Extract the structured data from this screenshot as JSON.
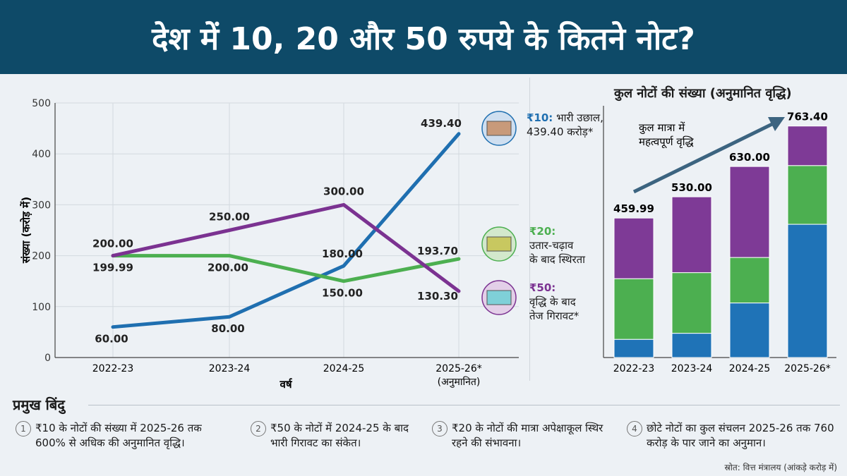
{
  "title": "देश में 10, 20 और 50 रुपये के कितने नोट?",
  "colors": {
    "header": "#0e4a68",
    "rs10": "#1f6fb0",
    "rs20": "#4caf50",
    "rs50": "#7b3291"
  },
  "chart_data": [
    {
      "type": "line",
      "categories": [
        "2022-23",
        "2023-24",
        "2024-25",
        "2025-26*"
      ],
      "category_sub": [
        "",
        "",
        "",
        "(अनुमानित)"
      ],
      "xlabel": "वर्ष",
      "ylabel": "संख्या (करोड़ में)",
      "ylim": [
        0,
        500
      ],
      "yticks": [
        0,
        100,
        200,
        300,
        400,
        500
      ],
      "grid": true,
      "series": [
        {
          "name": "₹10",
          "values": [
            60.0,
            80.0,
            180.0,
            439.4
          ],
          "labels": [
            "60.00",
            "80.00",
            "180.00",
            "439.40"
          ],
          "color": "#1f6fb0"
        },
        {
          "name": "₹20",
          "values": [
            199.99,
            200.0,
            150.0,
            193.7
          ],
          "labels": [
            "199.99",
            "200.00",
            "150.00",
            "193.70"
          ],
          "color": "#4caf50"
        },
        {
          "name": "₹50",
          "values": [
            200.0,
            250.0,
            300.0,
            130.3
          ],
          "labels": [
            "200.00",
            "250.00",
            "300.00",
            "130.30"
          ],
          "color": "#7b3291"
        }
      ],
      "annotations": [
        {
          "head": "₹10:",
          "text1": "भारी उछाल,",
          "text2": "439.40 करोड़*",
          "icon": "ten-rupee-note-icon"
        },
        {
          "head": "₹20:",
          "text1": "उतार-चढ़ाव",
          "text2": "के बाद स्थिरता",
          "icon": "twenty-rupee-note-icon"
        },
        {
          "head": "₹50:",
          "text1": "वृद्धि के बाद",
          "text2": "तेज गिरावट*",
          "icon": "fifty-rupee-note-icon"
        }
      ]
    },
    {
      "type": "bar",
      "stacked": true,
      "title": "कुल नोटों की संख्या (अनुमानित वृद्धि)",
      "categories": [
        "2022-23",
        "2023-24",
        "2024-25",
        "2025-26*"
      ],
      "totals": [
        "459.99",
        "530.00",
        "630.00",
        "763.40"
      ],
      "series": [
        {
          "values": [
            60.0,
            80.0,
            180.0,
            439.4
          ],
          "color": "#1f73b7"
        },
        {
          "values": [
            199.99,
            200.0,
            150.0,
            193.7
          ],
          "color": "#4caf50"
        },
        {
          "values": [
            200.0,
            250.0,
            300.0,
            130.3
          ],
          "color": "#7e3a96"
        }
      ],
      "annotation": [
        "कुल मात्रा में",
        "महत्वपूर्ण वृद्धि"
      ]
    }
  ],
  "key_points": {
    "title": "प्रमुख बिंदु",
    "items": [
      {
        "num": "1",
        "text": "₹10 के नोटों की संख्या में 2025-26 तक 600% से अधिक की अनुमानित वृद्धि।"
      },
      {
        "num": "2",
        "text": "₹50 के नोटों में 2024-25 के बाद भारी गिरावट का संकेत।"
      },
      {
        "num": "3",
        "text": "₹20 के नोटों की मात्रा अपेक्षाकूल स्थिर रहने की संभावना।"
      },
      {
        "num": "4",
        "text": "छोटे नोटों का कुल संचलन 2025-26 तक 760 करोड़ के पार जाने का अनुमान।"
      }
    ]
  },
  "source": "स्रोत: वित्त मंत्रालय (आंकड़े करोड़ में)"
}
